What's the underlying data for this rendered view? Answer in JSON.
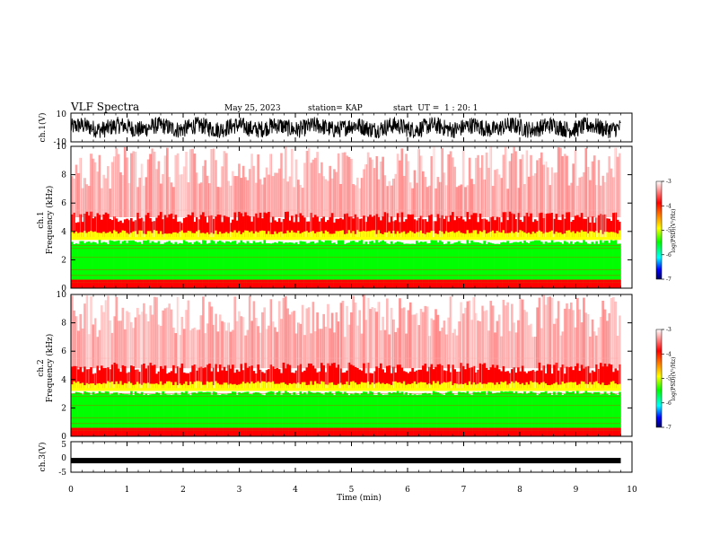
{
  "header": {
    "title": "VLF Spectra",
    "date": "May 25, 2023",
    "station": "station= KAP",
    "start": "start  UT =  1 : 20: 1"
  },
  "colors": {
    "white": "#ffffff",
    "red": "#ff0000",
    "yellow": "#ffff00",
    "green": "#00ff00",
    "cyan": "#00ffff",
    "blue": "#0000ff",
    "dark_blue": "#000080"
  },
  "chart_data": [
    {
      "type": "line",
      "id": "ch1_waveform",
      "ylabel": "ch.1(V)",
      "ylim": [
        -10,
        10
      ],
      "yticks": [
        "10",
        "-10"
      ],
      "xlim": [
        0,
        10
      ],
      "description_values": {
        "typical_range": [
          -6,
          6
        ]
      }
    },
    {
      "type": "heatmap",
      "id": "ch1_spectrogram",
      "ylabel_line1": "ch.1",
      "ylabel_line2": "Frequency (kHz)",
      "ylim": [
        0,
        10
      ],
      "yticks": [
        "0",
        "2",
        "4",
        "6",
        "8",
        "10"
      ],
      "xlim": [
        0,
        10
      ],
      "data_end_min": 9.8,
      "colorbar": {
        "label": "log(PSD)(V²/Hz)",
        "range": [
          -7,
          -3
        ],
        "ticks": [
          "-3",
          "-4",
          "-5",
          "-6",
          "-7"
        ]
      },
      "bands_kHz": [
        {
          "from": 0,
          "to": 0.6,
          "level": "red"
        },
        {
          "from": 0.6,
          "to": 3.6,
          "level": "green"
        },
        {
          "from": 3.6,
          "to": 5.0,
          "level": "red"
        },
        {
          "from": 5.0,
          "to": 10,
          "level": "white-red"
        }
      ]
    },
    {
      "type": "heatmap",
      "id": "ch2_spectrogram",
      "ylabel_line1": "ch.2",
      "ylabel_line2": "Frequency (kHz)",
      "ylim": [
        0,
        10
      ],
      "yticks": [
        "0",
        "2",
        "4",
        "6",
        "8",
        "10"
      ],
      "xlim": [
        0,
        10
      ],
      "data_end_min": 9.8,
      "colorbar": {
        "label": "log(PSD)(V²/Hz)",
        "range": [
          -7,
          -3
        ],
        "ticks": [
          "-3",
          "-4",
          "-5",
          "-6",
          "-7"
        ]
      },
      "bands_kHz": [
        {
          "from": 0,
          "to": 0.6,
          "level": "red"
        },
        {
          "from": 0.6,
          "to": 3.4,
          "level": "green"
        },
        {
          "from": 3.4,
          "to": 4.8,
          "level": "red"
        },
        {
          "from": 4.8,
          "to": 10,
          "level": "white-red"
        }
      ]
    },
    {
      "type": "line",
      "id": "ch3_waveform",
      "ylabel": "ch.3(V)",
      "ylim": [
        -5,
        5
      ],
      "yticks": [
        "5",
        "0",
        "-5"
      ],
      "xlim": [
        0,
        10
      ],
      "description_values": {
        "level": -1.2
      }
    }
  ],
  "x_axis": {
    "label": "Time (min)",
    "ticks": [
      "0",
      "1",
      "2",
      "3",
      "4",
      "5",
      "6",
      "7",
      "8",
      "9",
      "10"
    ]
  }
}
